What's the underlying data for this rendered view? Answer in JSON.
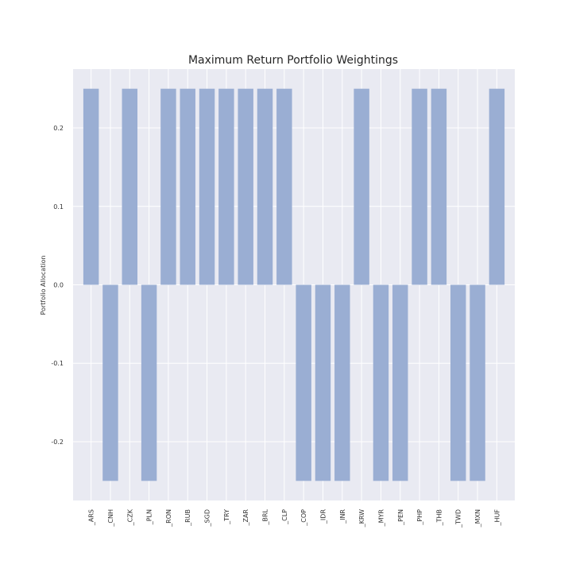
{
  "chart_data": {
    "type": "bar",
    "title": "Maximum Return Portfolio Weightings",
    "xlabel": "",
    "ylabel": "Portfolio Allocation",
    "categories": [
      "_ARS",
      "_CNH",
      "_CZK",
      "_PLN",
      "_RON",
      "_RUB",
      "_SGD",
      "_TRY",
      "_ZAR",
      "_BRL",
      "_CLP",
      "_COP",
      "_IDR",
      "_INR",
      "_KRW",
      "_MYR",
      "_PEN",
      "_PHP",
      "_THB",
      "_TWD",
      "_MXN",
      "_HUF"
    ],
    "values": [
      0.25,
      -0.25,
      0.25,
      -0.25,
      0.25,
      0.25,
      0.25,
      0.25,
      0.25,
      0.25,
      0.25,
      -0.25,
      -0.25,
      -0.25,
      0.25,
      -0.25,
      -0.25,
      0.25,
      0.25,
      -0.25,
      -0.25,
      0.25
    ],
    "ylim": [
      -0.275,
      0.275
    ],
    "yticks": [
      0.2,
      0.1,
      0.0,
      -0.1,
      -0.2
    ],
    "ytick_labels": [
      "0.2",
      "0.1",
      "0.0",
      "-0.1",
      "-0.2"
    ],
    "grid": true,
    "colors": {
      "bar": "#9aaed3",
      "background": "#e9eaf2",
      "grid": "#ffffff"
    }
  }
}
